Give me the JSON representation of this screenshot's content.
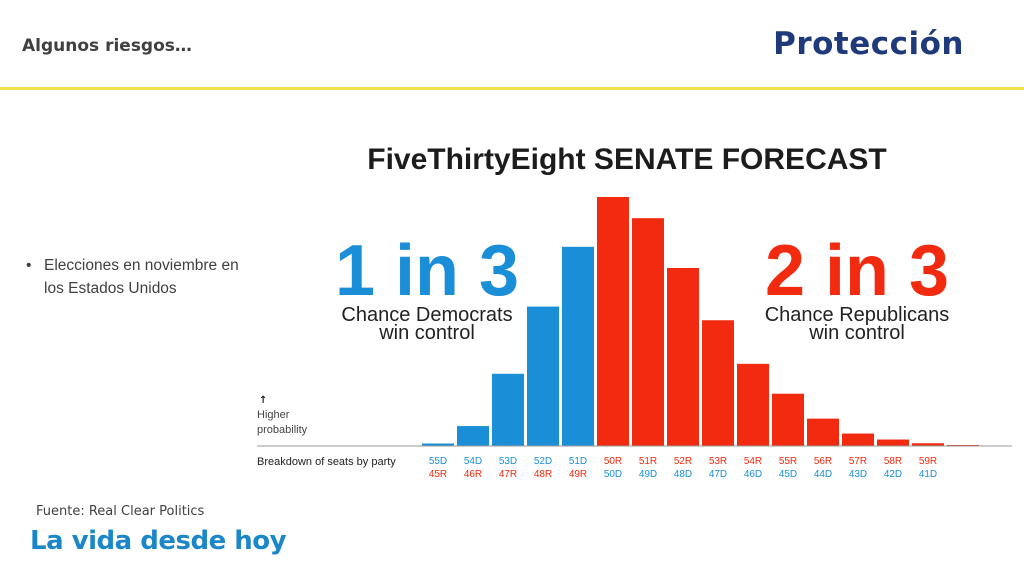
{
  "header": {
    "title": "Algunos riesgos…",
    "brand": "Protección"
  },
  "body": {
    "bullet_marker": "•",
    "bullet_text": "Elecciones en noviembre en los Estados Unidos"
  },
  "footer": {
    "source": "Fuente: Real Clear Politics",
    "tagline": "La vida desde hoy"
  },
  "colors": {
    "brand_blue": "#1f3a7a",
    "tagline_blue": "#1b87c8",
    "accent_yellow": "#f1e04a",
    "dem_blue": "#1a8fd8",
    "rep_red": "#f22b10"
  },
  "chart_data": {
    "type": "bar",
    "title": "FiveThirtyEight SENATE FORECAST",
    "dem_callout": {
      "big": "1 in 3",
      "line1": "Chance Democrats",
      "line2": "win control"
    },
    "rep_callout": {
      "big": "2 in 3",
      "line1": "Chance Republicans",
      "line2": "win control"
    },
    "ylabel_arrow": "↑",
    "ylabel_line1": "Higher",
    "ylabel_line2": "probability",
    "xlabel": "Breakdown of seats by party",
    "categories": [
      {
        "top": "55D",
        "bottom": "45R",
        "party": "D"
      },
      {
        "top": "54D",
        "bottom": "46R",
        "party": "D"
      },
      {
        "top": "53D",
        "bottom": "47R",
        "party": "D"
      },
      {
        "top": "52D",
        "bottom": "48R",
        "party": "D"
      },
      {
        "top": "51D",
        "bottom": "49R",
        "party": "D"
      },
      {
        "top": "50R",
        "bottom": "50D",
        "party": "R"
      },
      {
        "top": "51R",
        "bottom": "49D",
        "party": "R"
      },
      {
        "top": "52R",
        "bottom": "48D",
        "party": "R"
      },
      {
        "top": "53R",
        "bottom": "47D",
        "party": "R"
      },
      {
        "top": "54R",
        "bottom": "46D",
        "party": "R"
      },
      {
        "top": "55R",
        "bottom": "45D",
        "party": "R"
      },
      {
        "top": "56R",
        "bottom": "44D",
        "party": "R"
      },
      {
        "top": "57R",
        "bottom": "43D",
        "party": "R"
      },
      {
        "top": "58R",
        "bottom": "42D",
        "party": "R"
      },
      {
        "top": "59R",
        "bottom": "41D",
        "party": "R"
      }
    ],
    "values": [
      1.0,
      8.0,
      29.0,
      56.0,
      80.0,
      100.0,
      91.5,
      71.5,
      50.5,
      33.0,
      21.0,
      11.0,
      5.0,
      2.6,
      1.1
    ],
    "trailing_values": [
      0.4
    ],
    "ylim": [
      0,
      100
    ],
    "grid": false,
    "legend": "none"
  }
}
